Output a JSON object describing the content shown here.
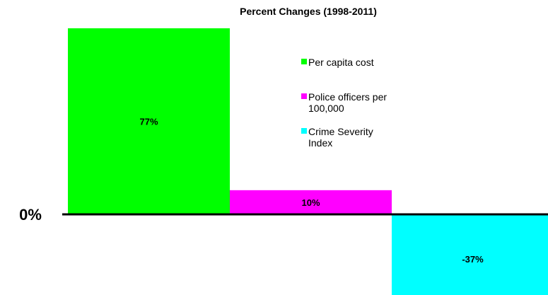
{
  "chart_data": {
    "type": "bar",
    "title": "Percent Changes (1998-2011)",
    "xlabel": "",
    "ylabel": "",
    "zero_label": "0%",
    "categories": [
      "Per capita cost",
      "Police officers per 100,000",
      "Crime Severity Index"
    ],
    "values": [
      77,
      10,
      -37
    ],
    "data_labels": [
      "77%",
      "10%",
      "-37%"
    ],
    "ylim": [
      -37,
      77
    ],
    "grid": false,
    "legend_placement": "right",
    "series": [
      {
        "name": "Per capita cost",
        "legend_lines": [
          "Per capita cost"
        ],
        "value": 77,
        "color": "#00ff00"
      },
      {
        "name": "Police officers per 100,000",
        "legend_lines": [
          "Police officers per",
          "100,000"
        ],
        "value": 10,
        "color": "#ff00ff"
      },
      {
        "name": "Crime Severity Index",
        "legend_lines": [
          "Crime Severity",
          "Index"
        ],
        "value": -37,
        "color": "#00ffff"
      }
    ]
  }
}
